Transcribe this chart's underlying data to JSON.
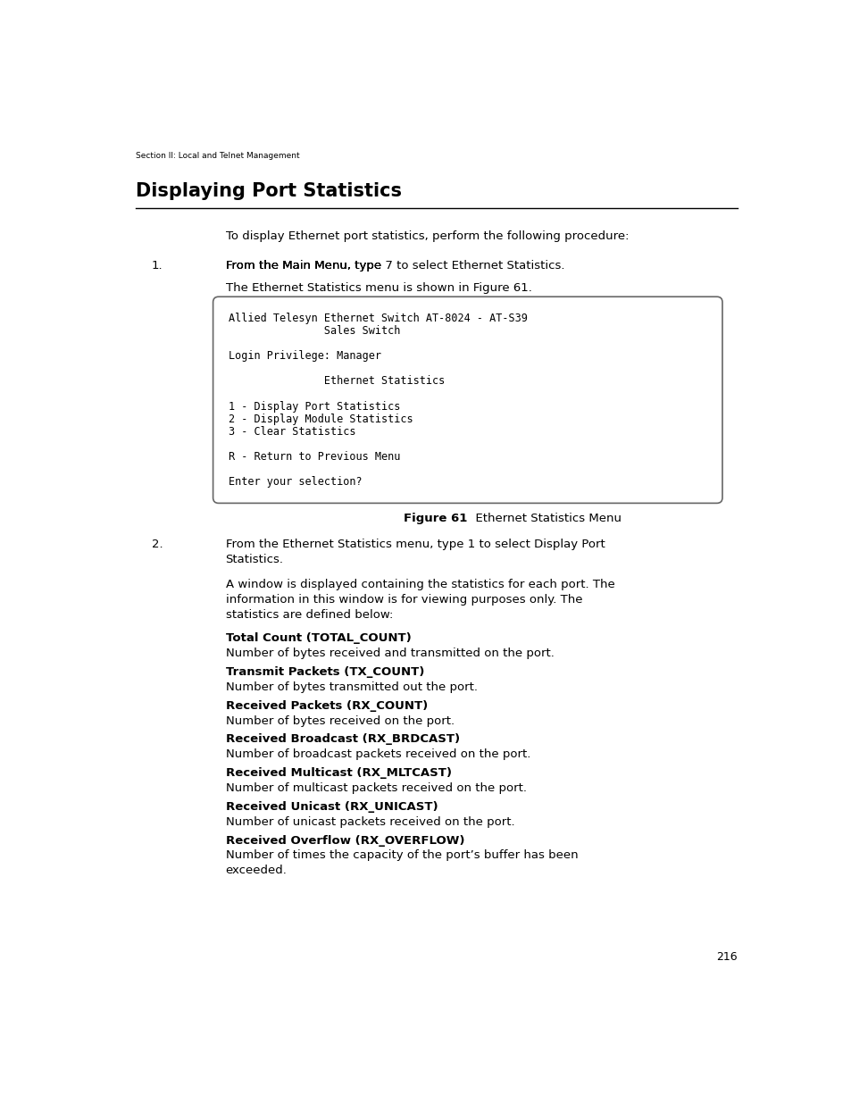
{
  "page_background": "#ffffff",
  "page_width": 9.54,
  "page_height": 12.35,
  "dpi": 100,
  "header_text": "Section II: Local and Telnet Management",
  "title": "Displaying Port Statistics",
  "intro_text": "To display Ethernet port statistics, perform the following procedure:",
  "step1_full": "From the Main Menu, type 7 to select Ethernet Statistics.",
  "step1_sub": "The Ethernet Statistics menu is shown in Figure 61.",
  "terminal_lines": [
    "Allied Telesyn Ethernet Switch AT-8024 - AT-S39",
    "               Sales Switch",
    "",
    "Login Privilege: Manager",
    "",
    "               Ethernet Statistics",
    "",
    "1 - Display Port Statistics",
    "2 - Display Module Statistics",
    "3 - Clear Statistics",
    "",
    "R - Return to Previous Menu",
    "",
    "Enter your selection?"
  ],
  "figure_caption_bold": "Figure 61",
  "figure_caption_normal": "  Ethernet Statistics Menu",
  "step2_line1": "From the Ethernet Statistics menu, type 1 to select Display Port",
  "step2_line2": "Statistics.",
  "step2_sub_lines": [
    "A window is displayed containing the statistics for each port. The",
    "information in this window is for viewing purposes only. The",
    "statistics are defined below:"
  ],
  "definitions": [
    {
      "bold": "Total Count (TOTAL_COUNT)",
      "normal": "Number of bytes received and transmitted on the port."
    },
    {
      "bold": "Transmit Packets (TX_COUNT)",
      "normal": "Number of bytes transmitted out the port."
    },
    {
      "bold": "Received Packets (RX_COUNT)",
      "normal": "Number of bytes received on the port."
    },
    {
      "bold": "Received Broadcast (RX_BRDCAST)",
      "normal": "Number of broadcast packets received on the port."
    },
    {
      "bold": "Received Multicast (RX_MLTCAST)",
      "normal": "Number of multicast packets received on the port."
    },
    {
      "bold": "Received Unicast (RX_UNICAST)",
      "normal": "Number of unicast packets received on the port."
    },
    {
      "bold": "Received Overflow (RX_OVERFLOW)",
      "normal_lines": [
        "Number of times the capacity of the port’s buffer has been",
        "exceeded."
      ]
    }
  ],
  "page_number": "216"
}
